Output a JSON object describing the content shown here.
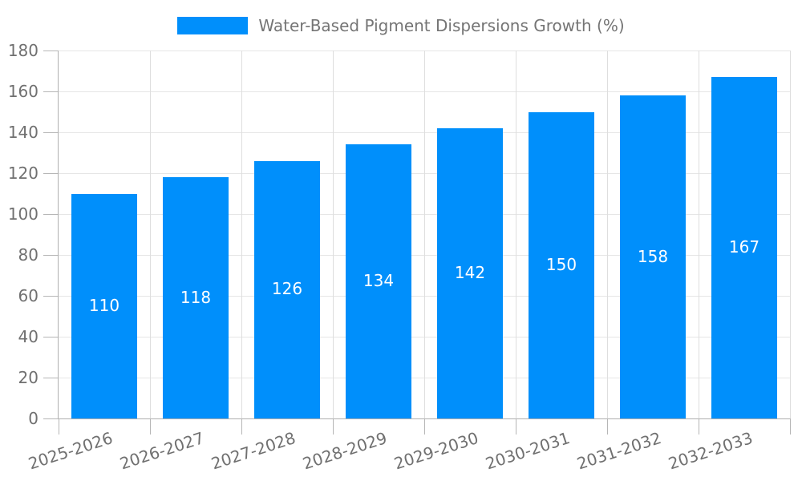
{
  "legend": {
    "label": "Water-Based Pigment Dispersions Growth (%)"
  },
  "chart_data": {
    "type": "bar",
    "title": "",
    "xlabel": "",
    "ylabel": "",
    "categories": [
      "2025-2026",
      "2026-2027",
      "2027-2028",
      "2028-2029",
      "2029-2030",
      "2030-2031",
      "2031-2032",
      "2032-2033"
    ],
    "values": [
      110,
      118,
      126,
      134,
      142,
      150,
      158,
      167
    ],
    "series_name": "Water-Based Pigment Dispersions Growth (%)",
    "ylim": [
      0,
      180
    ],
    "ytick_step": 20,
    "ytick_labels": [
      "0",
      "20",
      "40",
      "60",
      "80",
      "100",
      "120",
      "140",
      "160",
      "180"
    ],
    "grid": "both",
    "legend_position": "top-center",
    "x_label_rotation_deg": -18,
    "colors": {
      "bar": "#008FFB",
      "bar_value_label": "#FFFFFF",
      "axis_text": "#707070",
      "legend_text": "#757575",
      "gridline": "#E6E6E6",
      "axis_line": "#AFAFAF"
    }
  }
}
